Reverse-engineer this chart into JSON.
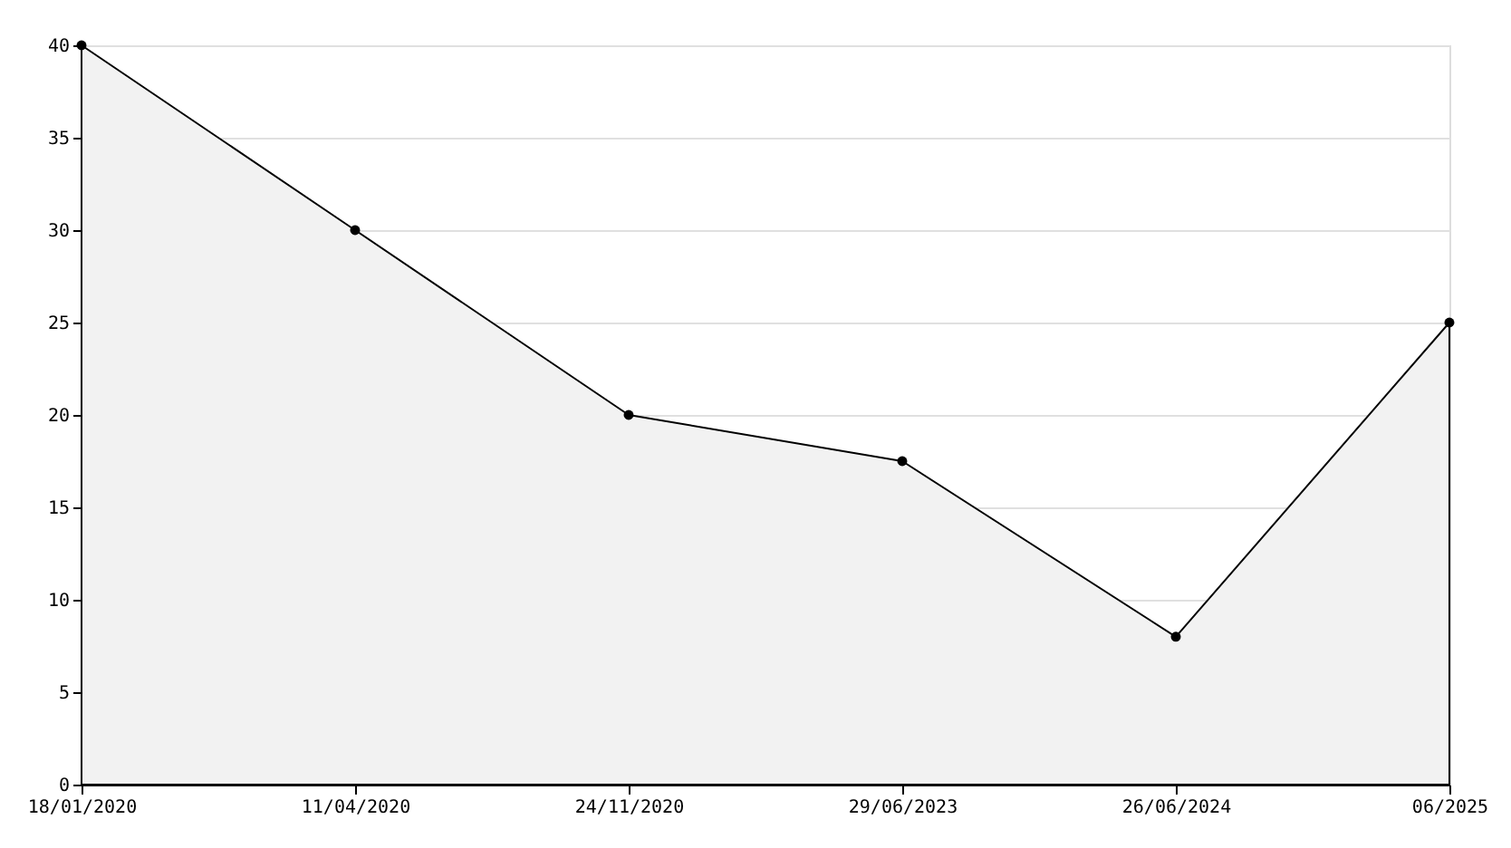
{
  "chart_data": {
    "type": "area",
    "categories": [
      "18/01/2020",
      "11/04/2020",
      "24/11/2020",
      "29/06/2023",
      "26/06/2024",
      "06/2025"
    ],
    "series": [
      {
        "color": "#f2f2f2",
        "values": [
          40,
          30,
          20,
          17.5,
          8,
          25
        ]
      }
    ],
    "ylim": [
      0,
      40
    ],
    "yticks": [
      0,
      5,
      10,
      15,
      20,
      25,
      30,
      35,
      40
    ],
    "grid": "y",
    "marker": "circle",
    "line_style": "solid"
  }
}
